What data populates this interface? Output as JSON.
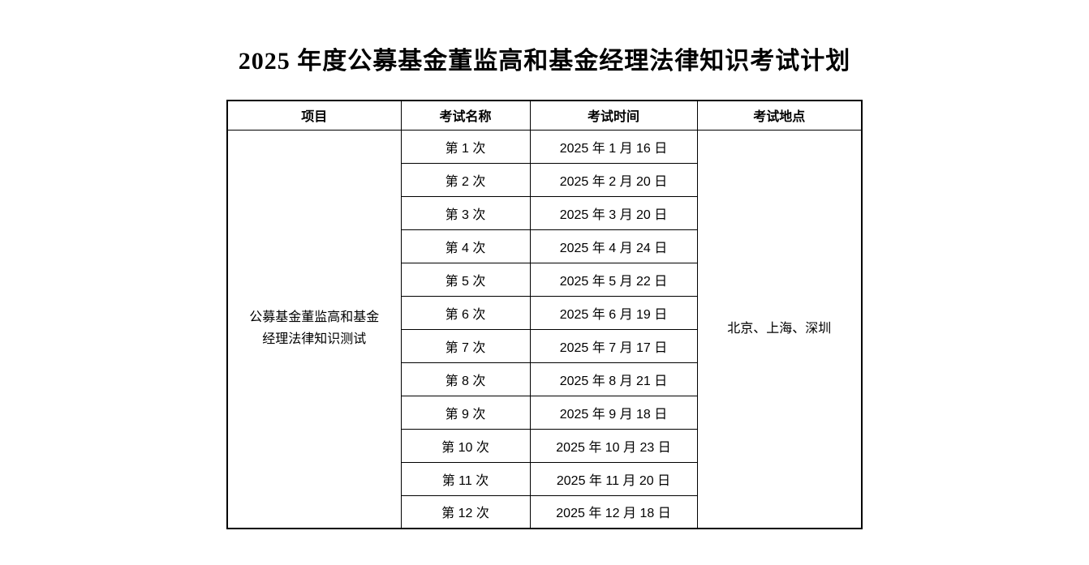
{
  "page": {
    "title": "2025 年度公募基金董监高和基金经理法律知识考试计划"
  },
  "table": {
    "headers": [
      "项目",
      "考试名称",
      "考试时间",
      "考试地点"
    ],
    "project": "公募基金董监高和基金\n经理法律知识测试",
    "location": "北京、上海、深圳",
    "rows": [
      {
        "name": "第 1 次",
        "date": "2025 年 1 月 16 日"
      },
      {
        "name": "第 2 次",
        "date": "2025 年 2 月 20 日"
      },
      {
        "name": "第 3 次",
        "date": "2025 年 3 月 20 日"
      },
      {
        "name": "第 4 次",
        "date": "2025 年 4 月 24 日"
      },
      {
        "name": "第 5 次",
        "date": "2025 年 5 月 22 日"
      },
      {
        "name": "第 6 次",
        "date": "2025 年 6 月 19 日"
      },
      {
        "name": "第 7 次",
        "date": "2025 年 7 月 17 日"
      },
      {
        "name": "第 8 次",
        "date": "2025 年 8 月 21 日"
      },
      {
        "name": "第 9 次",
        "date": "2025 年 9 月 18 日"
      },
      {
        "name": "第 10 次",
        "date": "2025 年 10 月 23 日"
      },
      {
        "name": "第 11 次",
        "date": "2025 年 11 月 20 日"
      },
      {
        "name": "第 12 次",
        "date": "2025 年 12 月 18 日"
      }
    ]
  }
}
